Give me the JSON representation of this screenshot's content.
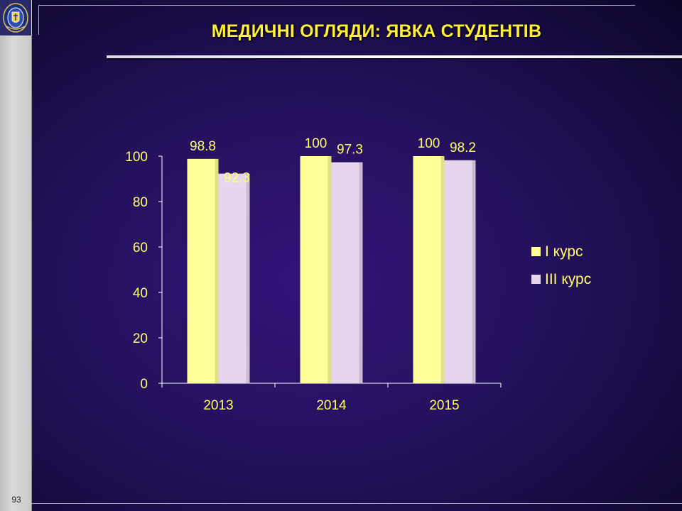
{
  "page": {
    "title": "МЕДИЧНІ ОГЛЯДИ: ЯВКА СТУДЕНТІВ",
    "page_number": "93"
  },
  "chart_data": {
    "type": "bar",
    "categories": [
      "2013",
      "2014",
      "2015"
    ],
    "series": [
      {
        "name": "І курс",
        "values": [
          98.8,
          100,
          100
        ],
        "color": "#ffff99"
      },
      {
        "name": "ІІІ курс",
        "values": [
          92.3,
          97.3,
          98.2
        ],
        "color": "#e6d5ee"
      }
    ],
    "ylim": [
      0,
      100
    ],
    "yticks": [
      0,
      20,
      40,
      60,
      80,
      100
    ],
    "data_labels": true,
    "grid": false,
    "legend_position": "right",
    "title": "",
    "xlabel": "",
    "ylabel": ""
  },
  "colors": {
    "background": "#24115c",
    "title_text": "#ffef3a",
    "axis_text": "#ffff66",
    "axis_line": "#ffffff"
  }
}
